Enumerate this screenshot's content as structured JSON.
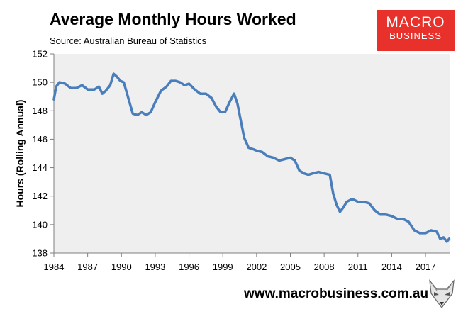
{
  "header": {
    "title": "Average Monthly Hours Worked",
    "subtitle": "Source: Australian Bureau of Statistics"
  },
  "logo": {
    "line1": "MACRO",
    "line2": "BUSINESS",
    "color": "#e8312a"
  },
  "footer": {
    "url": "www.macrobusiness.com.au"
  },
  "colors": {
    "line": "#4a7ebb",
    "plot_bg": "#efefef"
  },
  "chart_data": {
    "type": "line",
    "title": "Average Monthly Hours Worked",
    "subtitle": "Source: Australian Bureau of Statistics",
    "xlabel": "",
    "ylabel": "Hours (Rolling Annual)",
    "xlim": [
      1984,
      2019.2
    ],
    "ylim": [
      138,
      152
    ],
    "xticks": [
      1984,
      1987,
      1990,
      1993,
      1996,
      1999,
      2002,
      2005,
      2008,
      2011,
      2014,
      2017
    ],
    "yticks": [
      138,
      140,
      142,
      144,
      146,
      148,
      150,
      152
    ],
    "grid": false,
    "series": [
      {
        "x": [
          1984.0,
          1984.2,
          1984.5,
          1985.0,
          1985.5,
          1986.0,
          1986.5,
          1987.0,
          1987.3,
          1987.6,
          1988.0,
          1988.3,
          1988.6,
          1989.0,
          1989.3,
          1989.6,
          1989.9,
          1990.2,
          1990.5,
          1991.0,
          1991.4,
          1991.8,
          1992.2,
          1992.6,
          1993.0,
          1993.5,
          1994.0,
          1994.4,
          1994.8,
          1995.2,
          1995.6,
          1996.0,
          1996.5,
          1997.0,
          1997.5,
          1998.0,
          1998.4,
          1998.8,
          1999.2,
          1999.6,
          2000.0,
          2000.3,
          2000.6,
          2000.9,
          2001.3,
          2001.7,
          2002.0,
          2002.5,
          2003.0,
          2003.5,
          2004.0,
          2004.5,
          2005.0,
          2005.4,
          2005.8,
          2006.2,
          2006.6,
          2007.0,
          2007.5,
          2008.0,
          2008.5,
          2008.8,
          2009.1,
          2009.4,
          2009.7,
          2010.0,
          2010.5,
          2011.0,
          2011.5,
          2012.0,
          2012.5,
          2013.0,
          2013.5,
          2014.0,
          2014.5,
          2015.0,
          2015.5,
          2016.0,
          2016.5,
          2017.0,
          2017.5,
          2018.0,
          2018.3,
          2018.6,
          2018.9,
          2019.1
        ],
        "y": [
          148.8,
          149.7,
          150.0,
          149.9,
          149.6,
          149.6,
          149.8,
          149.5,
          149.5,
          149.5,
          149.7,
          149.2,
          149.4,
          149.8,
          150.6,
          150.4,
          150.1,
          150.0,
          149.2,
          147.8,
          147.7,
          147.9,
          147.7,
          147.9,
          148.6,
          149.4,
          149.7,
          150.1,
          150.1,
          150.0,
          149.8,
          149.9,
          149.5,
          149.2,
          149.2,
          148.9,
          148.3,
          147.9,
          147.9,
          148.6,
          149.2,
          148.5,
          147.3,
          146.1,
          145.4,
          145.3,
          145.2,
          145.1,
          144.8,
          144.7,
          144.5,
          144.6,
          144.7,
          144.5,
          143.8,
          143.6,
          143.5,
          143.6,
          143.7,
          143.6,
          143.5,
          142.2,
          141.4,
          140.9,
          141.2,
          141.6,
          141.8,
          141.6,
          141.6,
          141.5,
          141.0,
          140.7,
          140.7,
          140.6,
          140.4,
          140.4,
          140.2,
          139.6,
          139.4,
          139.4,
          139.6,
          139.5,
          139.0,
          139.1,
          138.8,
          139.0
        ]
      }
    ]
  }
}
